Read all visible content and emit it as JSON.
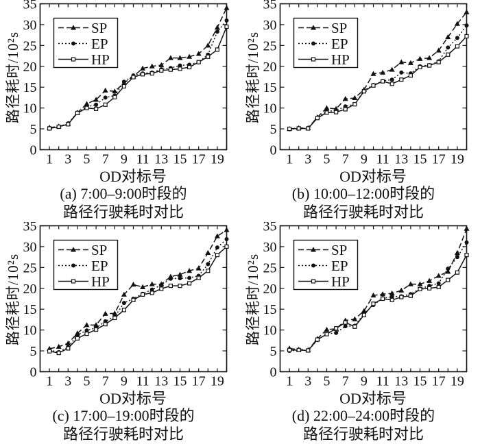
{
  "figure": {
    "background": "#ffffff",
    "line_color": "#111111",
    "xlabel": "OD对标号",
    "ylabel": "路径耗时/10²s",
    "legend_position": "upper-left",
    "legend_entries": [
      "SP",
      "EP",
      "HP"
    ]
  },
  "chart_data": [
    {
      "type": "line",
      "panel": "a",
      "caption_line1": "(a) 7:00–9:00时段的",
      "caption_line2": "路径行驶耗时对比",
      "xlabel": "OD对标号",
      "ylabel": "路径耗时/10²s",
      "xlim": [
        0,
        20
      ],
      "ylim": [
        0,
        35
      ],
      "xticks": [
        1,
        3,
        5,
        7,
        9,
        11,
        13,
        15,
        17,
        19
      ],
      "yticks": [
        0,
        5,
        10,
        15,
        20,
        25,
        30,
        35
      ],
      "x": [
        1,
        2,
        3,
        4,
        5,
        6,
        7,
        8,
        9,
        10,
        11,
        12,
        13,
        14,
        15,
        16,
        17,
        18,
        19,
        20
      ],
      "series": [
        {
          "name": "SP",
          "line": "dashed",
          "marker": "triangle",
          "values": [
            5.3,
            5.6,
            6.2,
            8.9,
            11.0,
            12.0,
            14.2,
            14.0,
            16.0,
            17.6,
            19.5,
            20.0,
            20.3,
            22.0,
            22.0,
            22.3,
            23.0,
            25.0,
            29.3,
            34.0
          ]
        },
        {
          "name": "EP",
          "line": "dotted",
          "marker": "circle",
          "values": [
            5.2,
            5.5,
            6.3,
            8.9,
            10.3,
            10.8,
            12.5,
            13.0,
            16.3,
            17.8,
            18.3,
            18.5,
            19.3,
            19.6,
            20.2,
            20.4,
            21.0,
            22.8,
            28.3,
            31.0
          ]
        },
        {
          "name": "HP",
          "line": "solid",
          "marker": "square",
          "values": [
            5.1,
            5.5,
            6.1,
            8.8,
            10.0,
            9.8,
            10.8,
            12.6,
            15.2,
            17.4,
            18.1,
            18.3,
            19.0,
            19.2,
            19.4,
            19.8,
            21.0,
            22.3,
            24.0,
            29.5
          ]
        }
      ]
    },
    {
      "type": "line",
      "panel": "b",
      "caption_line1": "(b) 10:00–12:00时段的",
      "caption_line2": "路径行驶耗时对比",
      "xlabel": "OD对标号",
      "ylabel": "路径耗时/10²s",
      "xlim": [
        0,
        20
      ],
      "ylim": [
        0,
        35
      ],
      "xticks": [
        1,
        3,
        5,
        7,
        9,
        11,
        13,
        15,
        17,
        19
      ],
      "yticks": [
        0,
        5,
        10,
        15,
        20,
        25,
        30,
        35
      ],
      "x": [
        1,
        2,
        3,
        4,
        5,
        6,
        7,
        8,
        9,
        10,
        11,
        12,
        13,
        14,
        15,
        16,
        17,
        18,
        19,
        20
      ],
      "series": [
        {
          "name": "SP",
          "line": "dashed",
          "marker": "triangle",
          "values": [
            5.0,
            5.2,
            5.2,
            7.8,
            10.0,
            9.8,
            12.2,
            12.4,
            14.4,
            18.2,
            18.5,
            19.2,
            21.0,
            20.8,
            21.8,
            22.0,
            23.8,
            27.0,
            30.2,
            33.0
          ]
        },
        {
          "name": "EP",
          "line": "dotted",
          "marker": "circle",
          "values": [
            4.9,
            5.1,
            5.1,
            7.7,
            9.2,
            9.4,
            10.4,
            10.9,
            14.2,
            15.5,
            16.5,
            16.8,
            18.5,
            18.3,
            20.0,
            20.3,
            21.2,
            24.5,
            26.8,
            29.8
          ]
        },
        {
          "name": "HP",
          "line": "solid",
          "marker": "square",
          "values": [
            5.0,
            5.1,
            5.1,
            7.6,
            8.9,
            9.0,
            9.7,
            10.9,
            14.0,
            15.4,
            16.4,
            15.8,
            16.8,
            17.8,
            19.8,
            20.2,
            21.0,
            22.8,
            24.8,
            27.2
          ]
        }
      ]
    },
    {
      "type": "line",
      "panel": "c",
      "caption_line1": "(c) 17:00–19:00时段的",
      "caption_line2": "路径行驶耗时对比",
      "xlabel": "OD对标号",
      "ylabel": "路径耗时/10²s",
      "xlim": [
        0,
        20
      ],
      "ylim": [
        0,
        35
      ],
      "xticks": [
        1,
        3,
        5,
        7,
        9,
        11,
        13,
        15,
        17,
        19
      ],
      "yticks": [
        0,
        5,
        10,
        15,
        20,
        25,
        30,
        35
      ],
      "x": [
        1,
        2,
        3,
        4,
        5,
        6,
        7,
        8,
        9,
        10,
        11,
        12,
        13,
        14,
        15,
        16,
        17,
        18,
        19,
        20
      ],
      "series": [
        {
          "name": "SP",
          "line": "dashed",
          "marker": "triangle",
          "values": [
            5.5,
            6.0,
            6.8,
            9.2,
            11.2,
            11.2,
            13.9,
            14.0,
            18.5,
            20.9,
            20.3,
            21.0,
            21.0,
            22.8,
            23.3,
            24.2,
            24.8,
            28.5,
            32.5,
            34.0
          ]
        },
        {
          "name": "EP",
          "line": "dotted",
          "marker": "circle",
          "values": [
            5.2,
            4.7,
            5.9,
            8.8,
            9.9,
            10.5,
            12.1,
            13.2,
            16.5,
            17.5,
            18.7,
            19.7,
            20.8,
            22.3,
            22.4,
            22.5,
            23.0,
            25.8,
            29.8,
            31.8
          ]
        },
        {
          "name": "HP",
          "line": "solid",
          "marker": "square",
          "values": [
            4.9,
            4.5,
            5.6,
            8.0,
            9.1,
            10.1,
            11.4,
            12.9,
            14.8,
            17.2,
            18.5,
            18.9,
            19.9,
            20.6,
            20.6,
            21.2,
            22.5,
            24.2,
            28.0,
            30.0
          ]
        }
      ]
    },
    {
      "type": "line",
      "panel": "d",
      "caption_line1": "(d) 22:00–24:00时段的",
      "caption_line2": "路径行驶耗时对比",
      "xlabel": "OD对标号",
      "ylabel": "路径耗时/10²s",
      "xlim": [
        0,
        20
      ],
      "ylim": [
        0,
        35
      ],
      "xticks": [
        1,
        3,
        5,
        7,
        9,
        11,
        13,
        15,
        17,
        19
      ],
      "yticks": [
        0,
        5,
        10,
        15,
        20,
        25,
        30,
        35
      ],
      "x": [
        1,
        2,
        3,
        4,
        5,
        6,
        7,
        8,
        9,
        10,
        11,
        12,
        13,
        14,
        15,
        16,
        17,
        18,
        19,
        20
      ],
      "series": [
        {
          "name": "SP",
          "line": "dashed",
          "marker": "triangle",
          "values": [
            5.6,
            5.3,
            5.2,
            7.9,
            10.1,
            10.3,
            12.3,
            12.6,
            14.6,
            18.3,
            18.6,
            18.8,
            19.5,
            21.0,
            21.0,
            21.8,
            23.0,
            24.0,
            28.5,
            34.3
          ]
        },
        {
          "name": "EP",
          "line": "dotted",
          "marker": "circle",
          "values": [
            5.0,
            5.2,
            5.1,
            7.6,
            9.1,
            9.3,
            10.9,
            11.0,
            13.9,
            16.0,
            17.6,
            18.0,
            18.1,
            18.6,
            19.9,
            20.6,
            21.2,
            24.7,
            27.5,
            31.0
          ]
        },
        {
          "name": "HP",
          "line": "solid",
          "marker": "square",
          "values": [
            5.2,
            5.2,
            5.1,
            7.7,
            9.0,
            10.4,
            11.8,
            10.8,
            13.6,
            16.3,
            17.5,
            17.2,
            17.9,
            18.2,
            19.8,
            20.0,
            20.3,
            22.0,
            23.8,
            28.0
          ]
        }
      ]
    }
  ]
}
